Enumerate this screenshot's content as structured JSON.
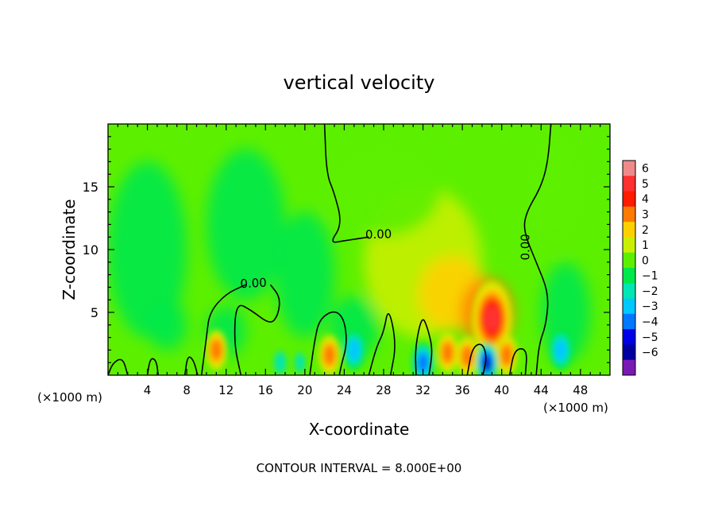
{
  "chart_data": {
    "type": "heatmap",
    "title": "vertical velocity",
    "xlabel": "X-coordinate",
    "ylabel": "Z-coordinate",
    "x_unit": "(×1000 m)",
    "xlim": [
      0,
      51
    ],
    "ylim": [
      0,
      20
    ],
    "x_ticks": [
      4,
      8,
      12,
      16,
      20,
      24,
      28,
      32,
      36,
      40,
      44,
      48
    ],
    "y_ticks": [
      5,
      10,
      15
    ],
    "grid": false,
    "footer": "CONTOUR INTERVAL = 8.000E+00",
    "contour_label": "0.00",
    "colorbar": {
      "placement": "right",
      "levels": [
        6,
        5,
        4,
        3,
        2,
        1,
        0,
        -1,
        -2,
        -3,
        -4,
        -5,
        -6
      ],
      "colors": [
        "#f08a8a",
        "#ff3030",
        "#ff1a00",
        "#ff7a00",
        "#ffd000",
        "#c8f000",
        "#5cf000",
        "#00e84a",
        "#00e6b4",
        "#00c8ff",
        "#0078ff",
        "#0000e6",
        "#0000a0",
        "#7a1ab4"
      ]
    },
    "features": [
      {
        "kind": "updraft",
        "x": 39,
        "z": 4.5,
        "value": 5
      },
      {
        "kind": "updraft",
        "x": 11,
        "z": 2.0,
        "value": 3
      },
      {
        "kind": "updraft",
        "x": 34.5,
        "z": 1.8,
        "value": 3
      },
      {
        "kind": "updraft",
        "x": 36.5,
        "z": 1.5,
        "value": 3
      },
      {
        "kind": "updraft",
        "x": 40.5,
        "z": 1.6,
        "value": 3
      },
      {
        "kind": "updraft",
        "x": 22.5,
        "z": 1.6,
        "value": 3
      },
      {
        "kind": "downdraft",
        "x": 38.5,
        "z": 1.0,
        "value": -5
      },
      {
        "kind": "downdraft",
        "x": 32,
        "z": 1.0,
        "value": -4
      },
      {
        "kind": "downdraft",
        "x": 25,
        "z": 2.0,
        "value": -3
      },
      {
        "kind": "downdraft",
        "x": 46,
        "z": 2.0,
        "value": -3
      }
    ],
    "contours": [
      {
        "value": 0,
        "label": "0.00",
        "points": [
          [
            22,
            20
          ],
          [
            22.2,
            16
          ],
          [
            23,
            14.5
          ],
          [
            23.8,
            12
          ],
          [
            22.5,
            10.5
          ],
          [
            24,
            10.7
          ],
          [
            26.5,
            11
          ]
        ]
      },
      {
        "value": 0,
        "label": "0.00",
        "points": [
          [
            45,
            20
          ],
          [
            44.7,
            17
          ],
          [
            44,
            15
          ],
          [
            42.5,
            13
          ],
          [
            42.2,
            11.5
          ],
          [
            43.5,
            9
          ],
          [
            44.8,
            6.5
          ],
          [
            44.5,
            4
          ],
          [
            43.8,
            2.5
          ],
          [
            43.5,
            0
          ]
        ]
      },
      {
        "value": 0,
        "label": "0.00",
        "points": [
          [
            9.5,
            0
          ],
          [
            10,
            3
          ],
          [
            10.3,
            5
          ],
          [
            12,
            6.5
          ],
          [
            14,
            7.2
          ]
        ]
      },
      {
        "value": 0,
        "label": "",
        "points": [
          [
            16.5,
            7.2
          ],
          [
            17.5,
            6.2
          ],
          [
            17.3,
            4.8
          ],
          [
            16.5,
            4.0
          ],
          [
            14.5,
            5.2
          ],
          [
            13,
            5.8
          ],
          [
            12.8,
            2.5
          ],
          [
            13.5,
            0
          ]
        ]
      },
      {
        "value": 0,
        "label": "",
        "points": [
          [
            20.5,
            0
          ],
          [
            21,
            2.8
          ],
          [
            21.5,
            4.5
          ],
          [
            23,
            5.2
          ],
          [
            24,
            4.5
          ],
          [
            24.3,
            2.5
          ],
          [
            23.7,
            0.8
          ],
          [
            23.5,
            0
          ]
        ]
      },
      {
        "value": 0,
        "label": "",
        "points": [
          [
            26.5,
            0
          ],
          [
            27.3,
            2.3
          ],
          [
            28,
            3.4
          ],
          [
            28.5,
            5.5
          ],
          [
            29.3,
            2.5
          ],
          [
            28.7,
            0
          ]
        ]
      },
      {
        "value": 0,
        "label": "",
        "points": [
          [
            31.3,
            0
          ],
          [
            31.2,
            2.2
          ],
          [
            31.9,
            4.8
          ],
          [
            32.5,
            3.7
          ],
          [
            33,
            2
          ],
          [
            32.6,
            0
          ]
        ]
      },
      {
        "value": 0,
        "label": "",
        "points": [
          [
            36.5,
            0
          ],
          [
            37,
            2.2
          ],
          [
            38,
            2.6
          ],
          [
            38.5,
            1.5
          ],
          [
            38.1,
            0
          ]
        ]
      },
      {
        "value": 0,
        "label": "",
        "points": [
          [
            0,
            0
          ],
          [
            0.5,
            1
          ],
          [
            1.5,
            1.4
          ],
          [
            2,
            0
          ]
        ]
      },
      {
        "value": 0,
        "label": "",
        "points": [
          [
            4,
            0
          ],
          [
            4.3,
            1.4
          ],
          [
            4.9,
            1.2
          ],
          [
            5.1,
            0
          ]
        ]
      },
      {
        "value": 0,
        "label": "",
        "points": [
          [
            7.8,
            0
          ],
          [
            8.1,
            1.6
          ],
          [
            8.7,
            1.2
          ],
          [
            9.1,
            0
          ]
        ]
      },
      {
        "value": 0,
        "label": "",
        "points": [
          [
            40.8,
            0
          ],
          [
            41.3,
            2.1
          ],
          [
            42.6,
            2.1
          ],
          [
            42.4,
            0
          ]
        ]
      }
    ]
  }
}
